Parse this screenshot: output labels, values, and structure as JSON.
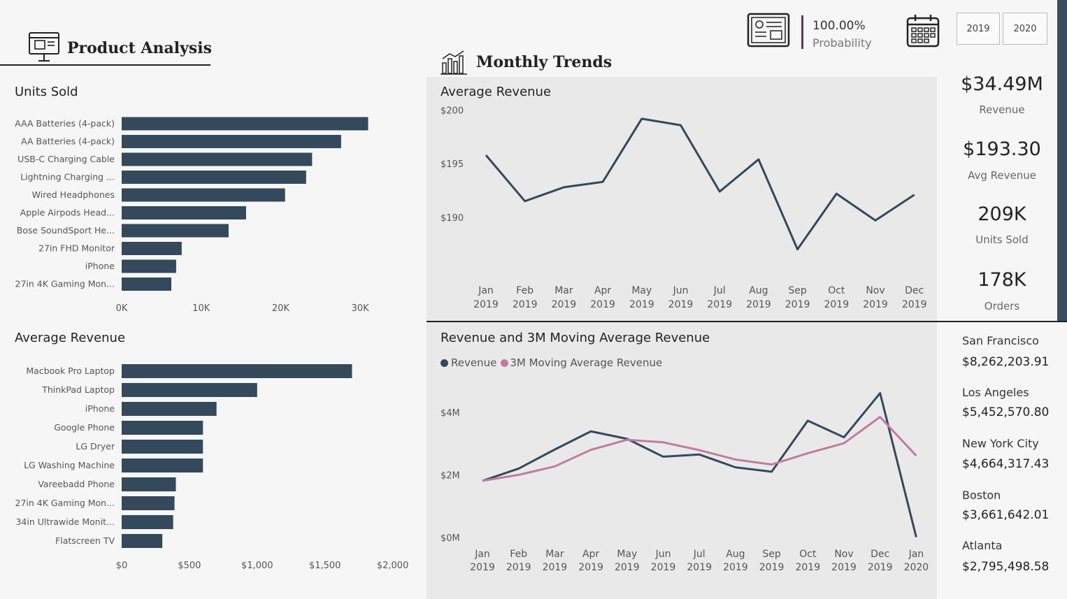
{
  "header": {
    "product_title": "Product Analysis",
    "trends_title": "Monthly Trends",
    "probability_value": "100.00%",
    "probability_label": "Probability",
    "years": [
      "2019",
      "2020"
    ]
  },
  "kpis": [
    {
      "value": "$34.49M",
      "label": "Revenue"
    },
    {
      "value": "$193.30",
      "label": "Avg Revenue"
    },
    {
      "value": "209K",
      "label": "Units Sold"
    },
    {
      "value": "178K",
      "label": "Orders"
    }
  ],
  "cities": [
    {
      "name": "San Francisco",
      "value": "$8,262,203.91"
    },
    {
      "name": "Los Angeles",
      "value": "$5,452,570.80"
    },
    {
      "name": "New York City",
      "value": "$4,664,317.43"
    },
    {
      "name": "Boston",
      "value": "$3,661,642.01"
    },
    {
      "name": "Atlanta",
      "value": "$2,795,498.58"
    }
  ],
  "colors": {
    "bar": "#34495b",
    "line": "#34495b",
    "moving_avg": "#c27ba0"
  },
  "chart_data": [
    {
      "type": "bar",
      "orientation": "horizontal",
      "title": "Units Sold",
      "categories": [
        "AAA Batteries (4-pack)",
        "AA Batteries (4-pack)",
        "USB-C Charging Cable",
        "Lightning Charging ...",
        "Wired Headphones",
        "Apple Airpods Head...",
        "Bose SoundSport He...",
        "27in FHD Monitor",
        "iPhone",
        "27in 4K Gaming Mon..."
      ],
      "values": [
        31000,
        27600,
        23950,
        23200,
        20550,
        15650,
        13450,
        7550,
        6850,
        6250
      ],
      "xlim": [
        0,
        35000
      ],
      "ticks": [
        0,
        10000,
        20000,
        30000
      ],
      "tick_labels": [
        "0K",
        "10K",
        "20K",
        "30K"
      ],
      "grid": false
    },
    {
      "type": "bar",
      "orientation": "horizontal",
      "title": "Average Revenue",
      "categories": [
        "Macbook Pro Laptop",
        "ThinkPad Laptop",
        "iPhone",
        "Google Phone",
        "LG Dryer",
        "LG Washing Machine",
        "Vareebadd Phone",
        "27in 4K Gaming Mon...",
        "34in Ultrawide Monit...",
        "Flatscreen TV"
      ],
      "values": [
        1700,
        1000,
        700,
        600,
        600,
        600,
        400,
        390,
        380,
        300
      ],
      "xlim": [
        0,
        2100
      ],
      "ticks": [
        0,
        500,
        1000,
        1500,
        2000
      ],
      "tick_labels": [
        "$0",
        "$500",
        "$1,000",
        "$1,500",
        "$2,000"
      ],
      "grid": false
    },
    {
      "type": "line",
      "title": "Average Revenue",
      "categories": [
        "Jan|2019",
        "Feb|2019",
        "Mar|2019",
        "Apr|2019",
        "May|2019",
        "Jun|2019",
        "Jul|2019",
        "Aug|2019",
        "Sep|2019",
        "Oct|2019",
        "Nov|2019",
        "Dec|2019"
      ],
      "values": [
        195.8,
        191.5,
        192.8,
        193.3,
        199.2,
        198.6,
        192.4,
        195.4,
        187.0,
        192.2,
        189.7,
        192.1
      ],
      "ylim": [
        184.5,
        200.5
      ],
      "ticks": [
        190,
        195,
        200
      ],
      "tick_labels": [
        "$190",
        "$195",
        "$200"
      ],
      "grid": false
    },
    {
      "type": "line",
      "title": "Revenue and 3M Moving Average Revenue",
      "categories": [
        "Jan|2019",
        "Feb|2019",
        "Mar|2019",
        "Apr|2019",
        "May|2019",
        "Jun|2019",
        "Jul|2019",
        "Aug|2019",
        "Sep|2019",
        "Oct|2019",
        "Nov|2019",
        "Dec|2019",
        "Jan|2020"
      ],
      "series": [
        {
          "name": "Revenue",
          "values": [
            1.81,
            2.2,
            2.81,
            3.39,
            3.15,
            2.58,
            2.65,
            2.24,
            2.1,
            3.73,
            3.2,
            4.61,
            0.01
          ]
        },
        {
          "name": "3M Moving Average Revenue",
          "values": [
            1.81,
            2.0,
            2.27,
            2.8,
            3.12,
            3.04,
            2.79,
            2.49,
            2.33,
            2.69,
            3.01,
            3.85,
            2.61
          ]
        }
      ],
      "ylim": [
        0,
        5
      ],
      "ticks": [
        0,
        2,
        4
      ],
      "tick_labels": [
        "$0M",
        "$2M",
        "$4M"
      ],
      "legend": "top-left",
      "grid": false
    }
  ]
}
